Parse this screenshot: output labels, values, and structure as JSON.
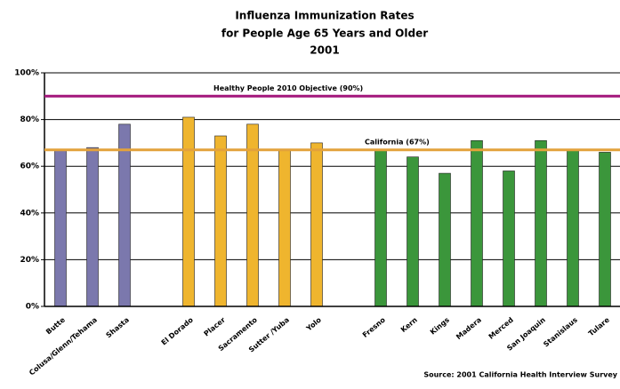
{
  "chart_data": {
    "type": "bar",
    "title": [
      "Influenza Immunization Rates",
      "for People Age 65 Years and Older",
      "2001"
    ],
    "categories": [
      "Butte",
      "Colusa/Glenn/Tehama",
      "Shasta",
      null,
      "El Dorado",
      "Placer",
      "Sacramento",
      "Sutter /Yuba",
      "Yolo",
      null,
      "Fresno",
      "Kern",
      "Kings",
      "Madera",
      "Merced",
      "San Joaquin",
      "Stanislaus",
      "Tulare"
    ],
    "values": [
      67,
      68,
      78,
      null,
      81,
      73,
      78,
      67,
      70,
      null,
      67,
      64,
      57,
      71,
      58,
      71,
      67,
      66
    ],
    "colors": [
      "#7b78ad",
      "#7b78ad",
      "#7b78ad",
      null,
      "#efb52e",
      "#efb52e",
      "#efb52e",
      "#efb52e",
      "#efb52e",
      null,
      "#3b963b",
      "#3b963b",
      "#3b963b",
      "#3b963b",
      "#3b963b",
      "#3b963b",
      "#3b963b",
      "#3b963b"
    ],
    "ylim": [
      0,
      100
    ],
    "yticks": [
      {
        "value": 0,
        "label": "0%"
      },
      {
        "value": 20,
        "label": "20%"
      },
      {
        "value": 40,
        "label": "40%"
      },
      {
        "value": 60,
        "label": "60%"
      },
      {
        "value": 80,
        "label": "80%"
      },
      {
        "value": 100,
        "label": "100%"
      }
    ],
    "grid": true,
    "reference_lines": [
      {
        "label": "Healthy People 2010 Objective (90%)",
        "value": 90,
        "color": "#a3167c"
      },
      {
        "label": "California (67%)",
        "value": 67,
        "color": "#e3a23b"
      }
    ],
    "source": "Source: 2001 California Health Interview Survey"
  }
}
